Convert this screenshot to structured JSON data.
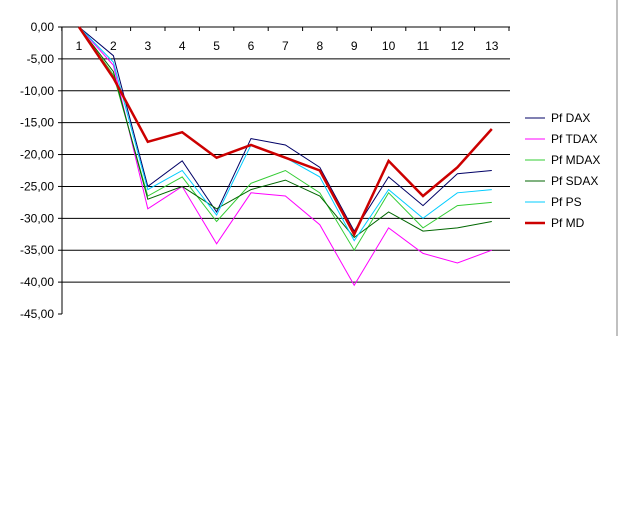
{
  "chart_data": {
    "type": "line",
    "title": "",
    "xlabel": "",
    "ylabel": "",
    "categories": [
      "1",
      "2",
      "3",
      "4",
      "5",
      "6",
      "7",
      "8",
      "9",
      "10",
      "11",
      "12",
      "13"
    ],
    "y_tick_labels": [
      "0,00",
      "-5,00",
      "-10,00",
      "-15,00",
      "-20,00",
      "-25,00",
      "-30,00",
      "-35,00",
      "-40,00",
      "-45,00"
    ],
    "ylim": [
      -45,
      0
    ],
    "grid": "horizontal",
    "legend_position": "right",
    "series": [
      {
        "name": "Pf DAX",
        "color": "#000066",
        "width": 1,
        "values": [
          0,
          -4.5,
          -25,
          -21,
          -29,
          -17.5,
          -18.5,
          -22,
          -32,
          -23.5,
          -28,
          -23,
          -22.5
        ]
      },
      {
        "name": "Pf TDAX",
        "color": "#ff00ff",
        "width": 1,
        "values": [
          0,
          -6,
          -28.5,
          -25,
          -34,
          -26,
          -26.5,
          -31,
          -40.5,
          -31.5,
          -35.5,
          -37,
          -35
        ]
      },
      {
        "name": "Pf MDAX",
        "color": "#33cc33",
        "width": 1,
        "values": [
          0,
          -7.5,
          -26.5,
          -23.5,
          -30.5,
          -24.5,
          -22.5,
          -26,
          -35,
          -26,
          -31.5,
          -28,
          -27.5
        ]
      },
      {
        "name": "Pf SDAX",
        "color": "#006600",
        "width": 1,
        "values": [
          0,
          -7,
          -27,
          -25,
          -28.5,
          -25.5,
          -24,
          -26.5,
          -33,
          -29,
          -32,
          -31.5,
          -30.5
        ]
      },
      {
        "name": "Pf PS",
        "color": "#00ccff",
        "width": 1,
        "values": [
          0,
          -5.5,
          -25.5,
          -22.5,
          -29.5,
          -18.5,
          -20.5,
          -23.5,
          -33.5,
          -25.5,
          -30,
          -26,
          -25.5
        ]
      },
      {
        "name": "Pf MD",
        "color": "#cc0000",
        "width": 2.5,
        "values": [
          0,
          -8,
          -18,
          -16.5,
          -20.5,
          -18.5,
          -20.5,
          -22.5,
          -32.5,
          -21,
          -26.5,
          -22,
          -16
        ]
      }
    ]
  }
}
